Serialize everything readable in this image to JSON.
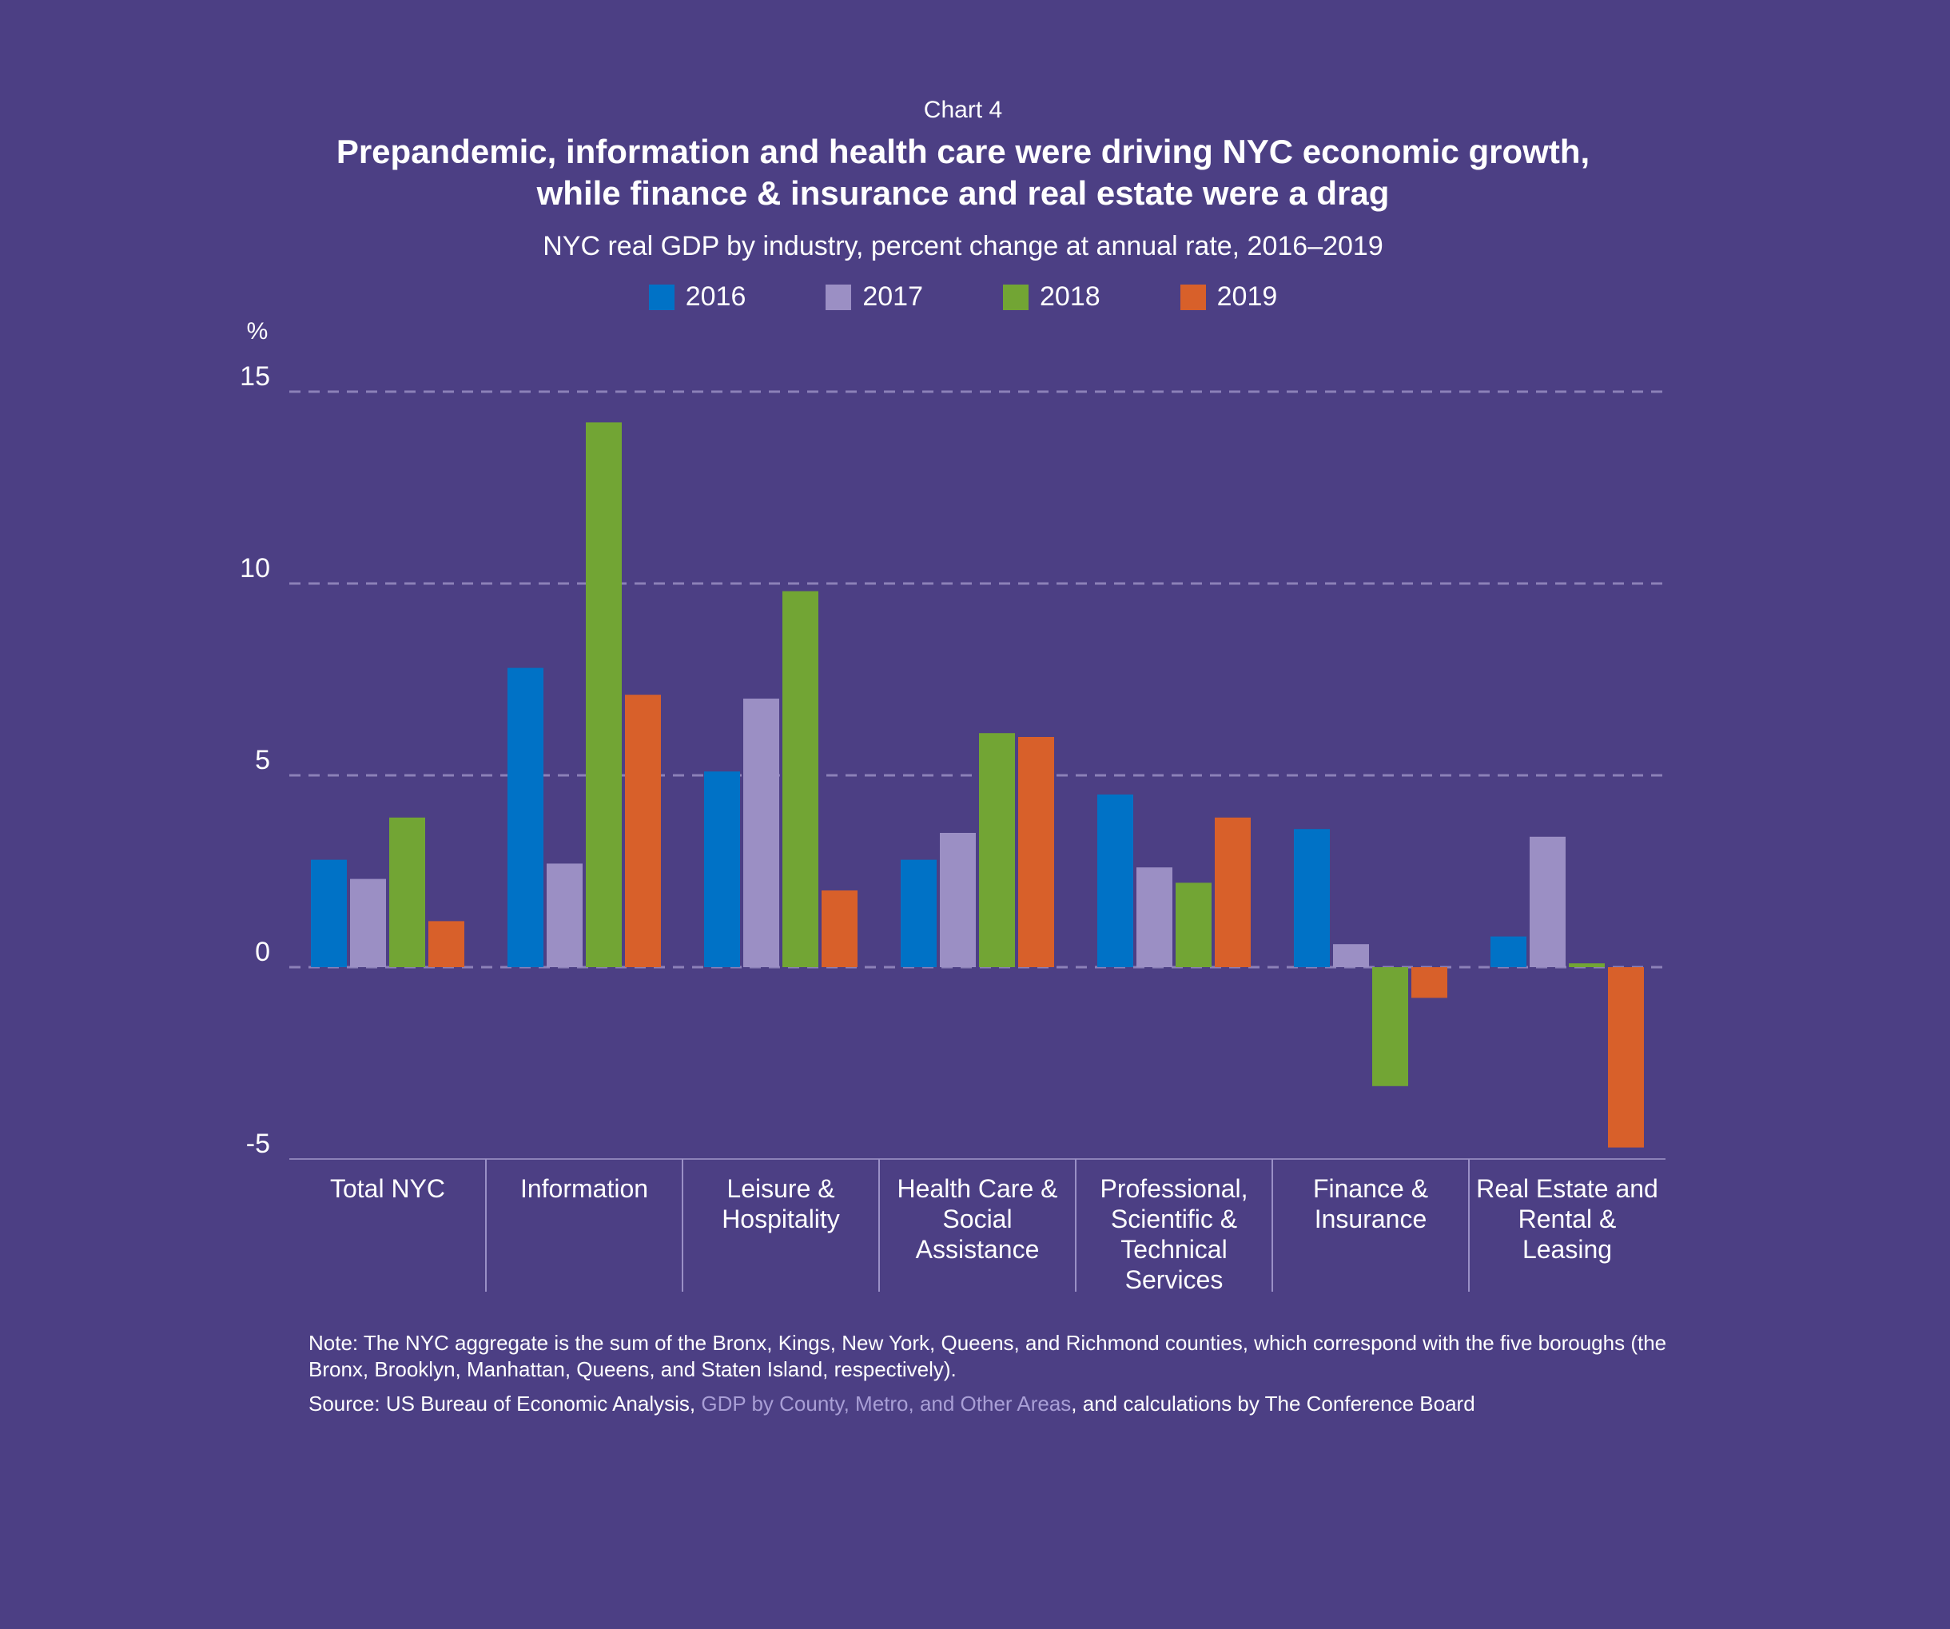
{
  "header": {
    "kicker": "Chart 4",
    "title_line1": "Prepandemic, information and health care were driving NYC economic growth,",
    "title_line2": "while finance & insurance and real estate were a drag",
    "subtitle": "NYC real GDP by industry, percent change at annual rate, 2016–2019"
  },
  "colors": {
    "background": "#4c3f84",
    "gridline": "#8c81b8",
    "2016": "#0072c6",
    "2017": "#9b8fc4",
    "2018": "#72a534",
    "2019": "#d8602a"
  },
  "chart_data": {
    "type": "bar",
    "y_unit": "%",
    "ylim": [
      -5,
      15
    ],
    "yticks": [
      15,
      10,
      5,
      0,
      -5
    ],
    "grid": true,
    "legend_position": "top-center",
    "categories": [
      "Total NYC",
      "Information",
      "Leisure &\nHospitality",
      "Health Care &\nSocial\nAssistance",
      "Professional,\nScientific &\nTechnical\nServices",
      "Finance &\nInsurance",
      "Real Estate and\nRental &\nLeasing"
    ],
    "series": [
      {
        "name": "2016",
        "values": [
          2.8,
          7.8,
          5.1,
          2.8,
          4.5,
          3.6,
          0.8
        ]
      },
      {
        "name": "2017",
        "values": [
          2.3,
          2.7,
          7.0,
          3.5,
          2.6,
          0.6,
          3.4
        ]
      },
      {
        "name": "2018",
        "values": [
          3.9,
          14.2,
          9.8,
          6.1,
          2.2,
          -3.1,
          0.1
        ]
      },
      {
        "name": "2019",
        "values": [
          1.2,
          7.1,
          2.0,
          6.0,
          3.9,
          -0.8,
          -4.7
        ]
      }
    ]
  },
  "notes": {
    "note": "Note: The NYC aggregate is the sum of the Bronx, Kings, New York, Queens, and Richmond counties, which correspond with the five boroughs (the Bronx, Brooklyn, Manhattan, Queens, and Staten Island, respectively).",
    "source_prefix": "Source: US Bureau of Economic Analysis, ",
    "source_link": "GDP by County, Metro, and Other Areas",
    "source_suffix": ", and calculations by The Conference Board"
  }
}
